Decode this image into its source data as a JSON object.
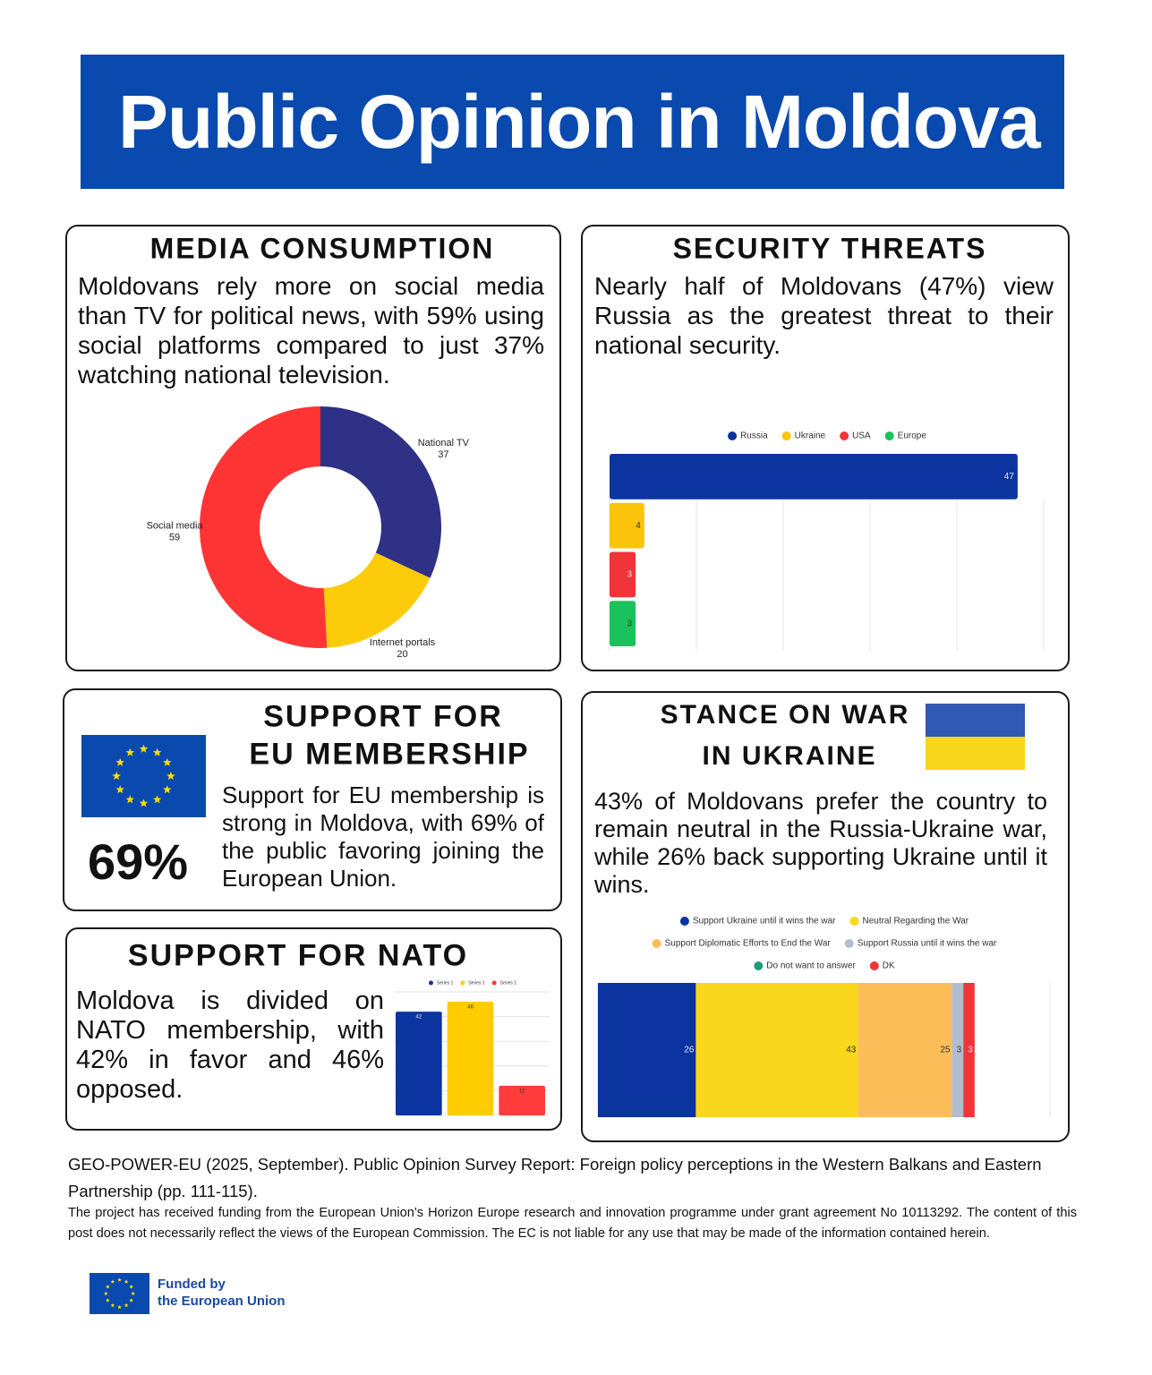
{
  "header": {
    "title": "Public Opinion in Moldova"
  },
  "media": {
    "heading": "MEDIA CONSUMPTION",
    "text": "Moldovans rely more on social media than TV for political news, with 59% using social platforms compared to just 37% watching national television."
  },
  "security": {
    "heading": "SECURITY THREATS",
    "text": "Nearly half of Moldovans (47%) view Russia as the greatest threat to their national security."
  },
  "eu": {
    "heading": [
      "SUPPORT FOR",
      "EU MEMBERSHIP"
    ],
    "stat": "69%",
    "text": "Support for EU membership is strong in Moldova, with 69% of the public favoring joining the European Union."
  },
  "nato": {
    "heading": "SUPPORT FOR NATO",
    "text": "Moldova is divided on NATO membership, with 42% in favor and 46% opposed."
  },
  "war": {
    "heading": [
      "STANCE ON WAR",
      "IN UKRAINE"
    ],
    "text": "43% of Moldovans prefer the country to remain neutral in the Russia-Ukraine war, while 26% back supporting Ukraine until it wins."
  },
  "footer": {
    "citation": "GEO-POWER-EU (2025, September). Public Opinion Survey Report: Foreign policy perceptions in the Western Balkans and Eastern Partnership (pp. 111-115).",
    "disclaimer": "The project has received funding from the European Union’s Horizon Europe research and innovation programme under grant agreement No 10113292. The content of this post does not necessarily reflect the views of the European Commission. The EC is not liable for any use that may be made of the information contained herein.",
    "funded": [
      "Funded by",
      "the European Union"
    ]
  },
  "chart_data": [
    {
      "type": "pie",
      "donut": true,
      "categories": [
        "National TV",
        "Internet portals",
        "Social media"
      ],
      "values": [
        37,
        20,
        59
      ],
      "colors": [
        "#2e3185",
        "#fccc0a",
        "#ff3535"
      ]
    },
    {
      "type": "bar",
      "orientation": "horizontal",
      "series": [
        {
          "name": "Russia",
          "color": "#0b34a0",
          "values": [
            47
          ]
        },
        {
          "name": "Ukraine",
          "color": "#fcc30b",
          "values": [
            4
          ]
        },
        {
          "name": "USA",
          "color": "#f03438",
          "values": [
            3
          ]
        },
        {
          "name": "Europe",
          "color": "#19c25a",
          "values": [
            3
          ]
        }
      ],
      "xlim": [
        0,
        50
      ],
      "xticks": [
        0,
        10,
        20,
        30,
        40,
        50
      ],
      "grid": true,
      "legend": "top"
    },
    {
      "type": "bar",
      "orientation": "vertical",
      "series": [
        {
          "name": "Series 1",
          "color": "#0b34a0",
          "values": [
            42
          ]
        },
        {
          "name": "Series 1",
          "color": "#ffcc00",
          "values": [
            46
          ]
        },
        {
          "name": "Series 1",
          "color": "#ff3b3b",
          "values": [
            12
          ]
        }
      ],
      "ylim": [
        0,
        50
      ],
      "yticks": [
        0,
        10,
        20,
        30,
        40,
        50
      ],
      "grid": true,
      "legend": "top"
    },
    {
      "type": "stacked_bar",
      "orientation": "horizontal",
      "series": [
        {
          "name": "Support Ukraine until it wins the war",
          "color": "#0b34a0",
          "values": [
            26
          ]
        },
        {
          "name": "Neutral Regarding the War",
          "color": "#f9d71c",
          "values": [
            43
          ]
        },
        {
          "name": "Support Diplomatic Efforts to End the War",
          "color": "#fdbd58",
          "values": [
            25
          ]
        },
        {
          "name": "Support Russia until it wins the war",
          "color": "#b0bccf",
          "values": [
            3
          ]
        },
        {
          "name": "Do not want to answer",
          "color": "#1f9d74",
          "values": [
            0
          ]
        },
        {
          "name": "DK",
          "color": "#f03438",
          "values": [
            3
          ]
        }
      ],
      "xlim": [
        0,
        120
      ],
      "xticks": [
        0,
        120
      ],
      "grid": true,
      "legend": "top"
    }
  ]
}
